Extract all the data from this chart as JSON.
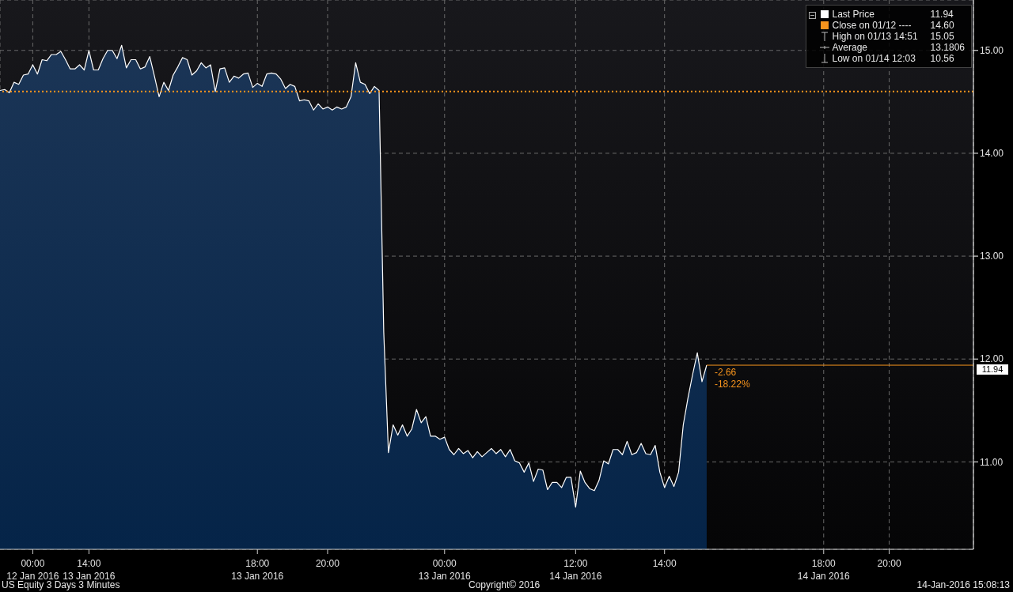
{
  "chart_data": {
    "type": "area",
    "categories": [
      null,
      null,
      null,
      null,
      null,
      null,
      null,
      "00:00\n12 Jan 2016",
      null,
      null,
      null,
      null,
      null,
      null,
      null,
      null,
      null,
      null,
      null,
      "14:00\n13 Jan 2016",
      null,
      null,
      null,
      null,
      null,
      null,
      null,
      null,
      null,
      null,
      null,
      null,
      null,
      null,
      null,
      null,
      null,
      null,
      null,
      null,
      null,
      null,
      null,
      null,
      null,
      null,
      null,
      null,
      null,
      null,
      null,
      null,
      null,
      null,
      null,
      "18:00\n13 Jan 2016",
      null,
      null,
      null,
      null,
      null,
      null,
      null,
      null,
      null,
      null,
      null,
      null,
      null,
      null,
      "20:00",
      null,
      null,
      null,
      null,
      null,
      null,
      null,
      null,
      null,
      null,
      null,
      null,
      null,
      null,
      null,
      null,
      null,
      null,
      null,
      null,
      null,
      null,
      null,
      null,
      "00:00\n13 Jan 2016",
      null,
      null,
      null,
      null,
      null,
      null,
      null,
      null,
      null,
      null,
      null,
      null,
      null,
      null,
      null,
      null,
      null,
      null,
      null,
      null,
      null,
      null,
      null,
      null,
      null,
      null,
      null,
      "12:00\n14 Jan 2016",
      null,
      null,
      null,
      null,
      null,
      null,
      null,
      null,
      null,
      null,
      null,
      null,
      null,
      null,
      null,
      null,
      null,
      null,
      "14:00",
      null,
      null,
      null,
      null,
      null,
      null,
      null,
      null,
      null,
      null,
      null,
      null,
      null,
      null,
      null,
      null,
      null,
      null,
      null,
      null,
      null,
      null,
      null,
      null,
      null,
      null,
      null,
      null,
      null,
      null,
      null,
      null,
      null,
      "18:00\n14 Jan 2016",
      null,
      null,
      null,
      null,
      null,
      null,
      null,
      null,
      null,
      null,
      null,
      null,
      null,
      "20:00",
      null,
      null,
      null,
      null,
      null,
      null,
      null,
      null,
      null,
      null,
      null,
      null,
      null,
      null,
      null,
      null,
      null,
      null
    ],
    "series": [
      {
        "name": "Last Price",
        "color": "#ffffff",
        "values": [
          14.61,
          14.62,
          14.59,
          14.69,
          14.67,
          14.76,
          14.77,
          14.86,
          14.77,
          14.91,
          14.9,
          14.96,
          14.96,
          14.99,
          14.91,
          14.82,
          14.82,
          14.86,
          14.81,
          15.0,
          14.81,
          14.81,
          14.92,
          15.0,
          15.0,
          14.92,
          15.05,
          14.83,
          14.91,
          14.91,
          14.82,
          14.84,
          14.94,
          14.75,
          14.55,
          14.69,
          14.61,
          14.76,
          14.84,
          14.93,
          14.91,
          14.76,
          14.8,
          14.88,
          14.83,
          14.86,
          14.6,
          14.82,
          14.83,
          14.69,
          14.75,
          14.73,
          14.77,
          14.78,
          14.64,
          14.68,
          14.65,
          14.77,
          14.78,
          14.77,
          14.72,
          14.63,
          14.67,
          14.65,
          14.51,
          14.52,
          14.51,
          14.42,
          14.48,
          14.43,
          14.45,
          14.42,
          14.45,
          14.43,
          14.45,
          14.55,
          14.88,
          14.69,
          14.67,
          14.58,
          14.65,
          14.61,
          12.26,
          11.09,
          11.36,
          11.26,
          11.36,
          11.25,
          11.32,
          11.51,
          11.38,
          11.44,
          11.25,
          11.25,
          11.22,
          11.24,
          11.12,
          11.07,
          11.13,
          11.08,
          11.11,
          11.04,
          11.1,
          11.05,
          11.09,
          11.13,
          11.08,
          11.12,
          11.05,
          11.12,
          11.01,
          10.99,
          10.9,
          10.99,
          10.81,
          10.93,
          10.92,
          10.73,
          10.8,
          10.8,
          10.75,
          10.85,
          10.85,
          10.56,
          10.91,
          10.8,
          10.74,
          10.72,
          10.82,
          11.01,
          10.98,
          11.12,
          11.12,
          11.07,
          11.2,
          11.07,
          11.09,
          11.18,
          11.08,
          11.07,
          11.16,
          10.9,
          10.75,
          10.86,
          10.76,
          10.9,
          11.36,
          11.62,
          11.85,
          12.06,
          11.78,
          11.94,
          null,
          null,
          null,
          null,
          null,
          null,
          null,
          null,
          null,
          null,
          null,
          null,
          null,
          null,
          null,
          null,
          null,
          null,
          null,
          null,
          null,
          null,
          null,
          null,
          null,
          null,
          null,
          null,
          null,
          null,
          null,
          null,
          null,
          null,
          null,
          null,
          null,
          null,
          null,
          null,
          null,
          null,
          null,
          null,
          null,
          null,
          null,
          null,
          null,
          null,
          null,
          null,
          null,
          null,
          null,
          null,
          null
        ]
      }
    ],
    "ylim": [
      10.15,
      15.49
    ],
    "yticks": [
      {
        "value": 11,
        "label": "11.00"
      },
      {
        "value": 12,
        "label": "12.00"
      },
      {
        "value": 13,
        "label": "13.00"
      },
      {
        "value": 14,
        "label": "14.00"
      },
      {
        "value": 15,
        "label": "15.00"
      }
    ],
    "ref_lines": [
      {
        "axis": "y",
        "value": 14.6,
        "label": "Close on 01/12 ----",
        "color": "#f7941d",
        "line_style": "dotted"
      },
      {
        "axis": "y",
        "value": 11.94,
        "label": "11.94",
        "color": "#f7941d",
        "line_style": "solid"
      }
    ],
    "annotations": [
      "11.94",
      "14.60",
      "High on 01/13 14:51",
      "15.05",
      "Average",
      "13.1806",
      "Low on 01/14 12:03",
      "10.56",
      "US Equity 3 Days 3 Minutes",
      "Copyright© 2016",
      "14-Jan-2016 15:08:13",
      {
        "text": "-2.66",
        "y": 11.94
      },
      {
        "text": "-18.22%",
        "y": 11.94
      }
    ],
    "grid": true,
    "legend": "top right"
  }
}
